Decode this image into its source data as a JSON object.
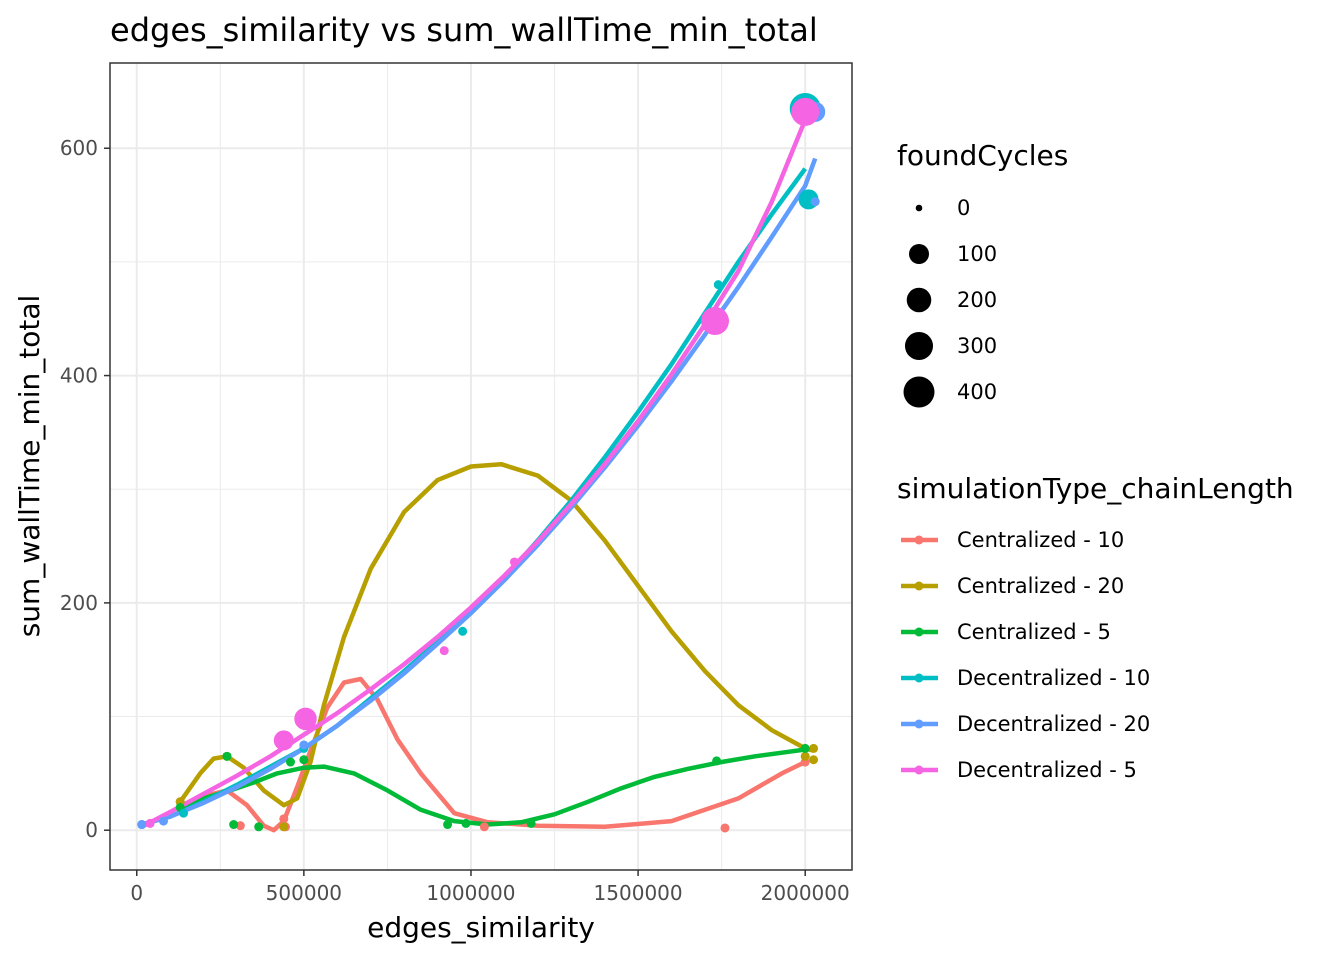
{
  "chart_data": {
    "type": "scatter",
    "title": "edges_similarity  vs  sum_wallTime_min_total",
    "xlabel": "edges_similarity",
    "ylabel": "sum_wallTime_min_total",
    "xlim": [
      -80000,
      2140000
    ],
    "ylim": [
      -35,
      675
    ],
    "xticks": [
      0,
      500000,
      1000000,
      1500000,
      2000000
    ],
    "xtick_labels": [
      "0",
      "500000",
      "1000000",
      "1500000",
      "2000000"
    ],
    "yticks": [
      0,
      200,
      400,
      600
    ],
    "ytick_labels": [
      "0",
      "200",
      "400",
      "600"
    ],
    "grid": true,
    "size_legend": {
      "title": "foundCycles",
      "entries": [
        {
          "label": "0",
          "value": 0
        },
        {
          "label": "100",
          "value": 100
        },
        {
          "label": "200",
          "value": 200
        },
        {
          "label": "300",
          "value": 300
        },
        {
          "label": "400",
          "value": 400
        }
      ]
    },
    "color_legend_title": "simulationType_chainLength",
    "series": [
      {
        "name": "Centralized - 10",
        "color": "#F8766D",
        "points": [
          [
            130000,
            25,
            0
          ],
          [
            310000,
            4,
            0
          ],
          [
            440000,
            10,
            0
          ],
          [
            445000,
            3,
            0
          ],
          [
            1040000,
            3,
            0
          ],
          [
            1760000,
            2,
            0
          ],
          [
            2000000,
            60,
            0
          ]
        ],
        "smooth": [
          [
            130000,
            20
          ],
          [
            200000,
            30
          ],
          [
            270000,
            35
          ],
          [
            330000,
            22
          ],
          [
            380000,
            4
          ],
          [
            410000,
            0
          ],
          [
            440000,
            8
          ],
          [
            480000,
            38
          ],
          [
            520000,
            70
          ],
          [
            570000,
            108
          ],
          [
            620000,
            130
          ],
          [
            670000,
            133
          ],
          [
            720000,
            115
          ],
          [
            780000,
            80
          ],
          [
            850000,
            50
          ],
          [
            950000,
            15
          ],
          [
            1050000,
            7
          ],
          [
            1200000,
            4
          ],
          [
            1400000,
            3
          ],
          [
            1600000,
            8
          ],
          [
            1800000,
            28
          ],
          [
            1930000,
            50
          ],
          [
            2000000,
            60
          ]
        ]
      },
      {
        "name": "Centralized - 20",
        "color": "#B79F00",
        "points": [
          [
            130000,
            25,
            0
          ],
          [
            270000,
            65,
            0
          ],
          [
            440000,
            3,
            0
          ],
          [
            2000000,
            65,
            0
          ],
          [
            2025000,
            72,
            0
          ],
          [
            2025000,
            62,
            0
          ]
        ],
        "smooth": [
          [
            130000,
            25
          ],
          [
            190000,
            50
          ],
          [
            230000,
            63
          ],
          [
            270000,
            65
          ],
          [
            320000,
            55
          ],
          [
            380000,
            35
          ],
          [
            440000,
            22
          ],
          [
            480000,
            28
          ],
          [
            520000,
            60
          ],
          [
            560000,
            110
          ],
          [
            620000,
            170
          ],
          [
            700000,
            230
          ],
          [
            800000,
            280
          ],
          [
            900000,
            308
          ],
          [
            1000000,
            320
          ],
          [
            1090000,
            322
          ],
          [
            1200000,
            312
          ],
          [
            1300000,
            290
          ],
          [
            1400000,
            255
          ],
          [
            1500000,
            215
          ],
          [
            1600000,
            175
          ],
          [
            1700000,
            140
          ],
          [
            1800000,
            110
          ],
          [
            1900000,
            88
          ],
          [
            2000000,
            72
          ],
          [
            2025000,
            70
          ]
        ]
      },
      {
        "name": "Centralized - 5",
        "color": "#00BA38",
        "points": [
          [
            130000,
            20,
            0
          ],
          [
            270000,
            65,
            0
          ],
          [
            290000,
            5,
            0
          ],
          [
            365000,
            3,
            0
          ],
          [
            460000,
            60,
            0
          ],
          [
            500000,
            62,
            0
          ],
          [
            930000,
            5,
            0
          ],
          [
            985000,
            6,
            0
          ],
          [
            1180000,
            6,
            0
          ],
          [
            1735000,
            61,
            0
          ],
          [
            2000000,
            72,
            0
          ]
        ],
        "smooth": [
          [
            130000,
            20
          ],
          [
            200000,
            28
          ],
          [
            280000,
            35
          ],
          [
            350000,
            42
          ],
          [
            420000,
            50
          ],
          [
            500000,
            55
          ],
          [
            560000,
            56
          ],
          [
            650000,
            50
          ],
          [
            750000,
            35
          ],
          [
            850000,
            18
          ],
          [
            950000,
            8
          ],
          [
            1050000,
            5
          ],
          [
            1150000,
            7
          ],
          [
            1250000,
            14
          ],
          [
            1350000,
            25
          ],
          [
            1450000,
            37
          ],
          [
            1550000,
            47
          ],
          [
            1650000,
            54
          ],
          [
            1750000,
            60
          ],
          [
            1850000,
            65
          ],
          [
            1950000,
            69
          ],
          [
            2000000,
            71
          ]
        ]
      },
      {
        "name": "Decentralized - 10",
        "color": "#00BFC4",
        "points": [
          [
            15000,
            5,
            0
          ],
          [
            140000,
            15,
            0
          ],
          [
            500000,
            72,
            0
          ],
          [
            975000,
            175,
            0
          ],
          [
            1740000,
            480,
            0
          ],
          [
            2000000,
            635,
            400
          ],
          [
            2010000,
            555,
            100
          ]
        ],
        "smooth": [
          [
            15000,
            5
          ],
          [
            100000,
            12
          ],
          [
            200000,
            25
          ],
          [
            300000,
            40
          ],
          [
            400000,
            56
          ],
          [
            500000,
            72
          ],
          [
            600000,
            92
          ],
          [
            700000,
            116
          ],
          [
            800000,
            140
          ],
          [
            900000,
            166
          ],
          [
            1000000,
            193
          ],
          [
            1100000,
            222
          ],
          [
            1200000,
            255
          ],
          [
            1300000,
            290
          ],
          [
            1400000,
            328
          ],
          [
            1500000,
            368
          ],
          [
            1600000,
            410
          ],
          [
            1700000,
            455
          ],
          [
            1800000,
            500
          ],
          [
            1900000,
            542
          ],
          [
            2000000,
            582
          ]
        ]
      },
      {
        "name": "Decentralized - 20",
        "color": "#619CFF",
        "points": [
          [
            15000,
            5,
            0
          ],
          [
            80000,
            8,
            0
          ],
          [
            500000,
            75,
            0
          ],
          [
            2030000,
            632,
            100
          ],
          [
            2030000,
            553,
            0
          ]
        ],
        "smooth": [
          [
            15000,
            5
          ],
          [
            100000,
            12
          ],
          [
            200000,
            24
          ],
          [
            300000,
            38
          ],
          [
            400000,
            54
          ],
          [
            500000,
            72
          ],
          [
            600000,
            92
          ],
          [
            700000,
            114
          ],
          [
            800000,
            138
          ],
          [
            900000,
            164
          ],
          [
            1000000,
            191
          ],
          [
            1100000,
            220
          ],
          [
            1200000,
            251
          ],
          [
            1300000,
            284
          ],
          [
            1400000,
            319
          ],
          [
            1500000,
            356
          ],
          [
            1600000,
            395
          ],
          [
            1700000,
            436
          ],
          [
            1800000,
            478
          ],
          [
            1900000,
            522
          ],
          [
            2000000,
            567
          ],
          [
            2030000,
            591
          ]
        ]
      },
      {
        "name": "Decentralized - 5",
        "color": "#F564E3",
        "points": [
          [
            40000,
            6,
            0
          ],
          [
            440000,
            79,
            100
          ],
          [
            505000,
            98,
            150
          ],
          [
            920000,
            158,
            0
          ],
          [
            1130000,
            236,
            0
          ],
          [
            1730000,
            448,
            300
          ],
          [
            2000000,
            632,
            300
          ]
        ],
        "smooth": [
          [
            15000,
            3
          ],
          [
            100000,
            16
          ],
          [
            200000,
            32
          ],
          [
            300000,
            48
          ],
          [
            400000,
            65
          ],
          [
            500000,
            84
          ],
          [
            600000,
            103
          ],
          [
            700000,
            124
          ],
          [
            800000,
            146
          ],
          [
            900000,
            170
          ],
          [
            1000000,
            196
          ],
          [
            1100000,
            224
          ],
          [
            1200000,
            254
          ],
          [
            1300000,
            287
          ],
          [
            1400000,
            322
          ],
          [
            1500000,
            360
          ],
          [
            1600000,
            401
          ],
          [
            1700000,
            445
          ],
          [
            1800000,
            492
          ],
          [
            1900000,
            553
          ],
          [
            2000000,
            625
          ]
        ]
      }
    ]
  }
}
